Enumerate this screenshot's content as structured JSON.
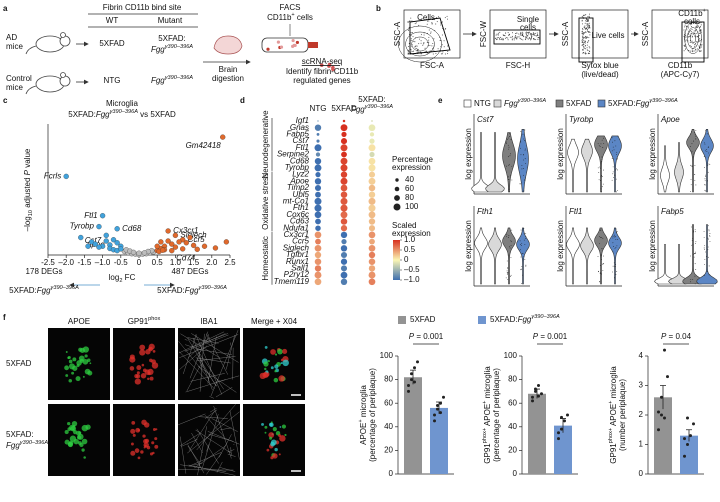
{
  "panel_a": {
    "letter": "a",
    "ad_mice": [
      "AD",
      "mice"
    ],
    "control_mice": [
      "Control",
      "mice"
    ],
    "header": "Fibrin CD11b bind site",
    "wt": "WT",
    "mutant": "Mutant",
    "rows": [
      {
        "wt": "5XFAD",
        "mutant": [
          [
            {
              "t": "5XFAD:"
            }
          ],
          [
            {
              "t": "Fgg",
              "i": true
            },
            {
              "t": "γ390–396A",
              "i": true,
              "sup": true
            }
          ]
        ]
      },
      {
        "wt": "NTG",
        "mutant": [
          [
            {
              "t": "Fgg",
              "i": true
            },
            {
              "t": "γ390–396A",
              "i": true,
              "sup": true
            }
          ]
        ]
      }
    ],
    "digestion": [
      "Brain",
      "digestion"
    ],
    "facs": [
      [
        {
          "t": "FACS"
        }
      ],
      [
        {
          "t": "CD11b"
        },
        {
          "t": "+",
          "sup": true
        },
        {
          "t": " cells"
        }
      ]
    ],
    "scrna": "scRNA-seq",
    "identify": [
      "Identify fibrin-CD11b",
      "regulated genes"
    ]
  },
  "panel_b": {
    "letter": "b",
    "plots": [
      {
        "y": "SSC-A",
        "x": [
          [
            {
              "t": "FSC-A"
            }
          ]
        ],
        "gate": [
          [
            {
              "t": "Cells"
            }
          ]
        ]
      },
      {
        "y": "FSC-W",
        "x": [
          [
            {
              "t": "FSC-H"
            }
          ]
        ],
        "gate": [
          [
            {
              "t": "Single"
            }
          ],
          [
            {
              "t": "cells"
            }
          ]
        ]
      },
      {
        "y": "SSC-A",
        "x": [
          [
            {
              "t": "Sytox blue"
            }
          ],
          [
            {
              "t": "(live/dead)"
            }
          ]
        ],
        "gate": [
          [
            {
              "t": "Live cells"
            }
          ]
        ]
      },
      {
        "y": "SSC-A",
        "x": [
          [
            {
              "t": "CD11b"
            }
          ],
          [
            {
              "t": "(APC-Cy7)"
            }
          ]
        ],
        "gate": [
          [
            {
              "t": "CD11b"
            },
            {
              "t": "+",
              "sup": true
            }
          ],
          [
            {
              "t": "cells"
            }
          ]
        ]
      }
    ]
  },
  "panel_c": {
    "letter": "c",
    "type": "scatter",
    "title": "Microglia",
    "subtitle": [
      {
        "t": "5XFAD:"
      },
      {
        "t": "Fgg",
        "i": true
      },
      {
        "t": "γ390–396A",
        "i": true,
        "sup": true
      },
      {
        "t": " vs 5XFAD"
      }
    ],
    "y_label": [
      {
        "t": "–log"
      },
      {
        "t": "10",
        "sub": true
      },
      {
        "t": " adjusted "
      },
      {
        "t": "P",
        "i": true
      },
      {
        "t": " value"
      }
    ],
    "x_label": [
      {
        "t": "log"
      },
      {
        "t": "2",
        "sub": true
      },
      {
        "t": " FC"
      }
    ],
    "xlim": [
      -2.5,
      2.5
    ],
    "ylim": [
      0,
      30
    ],
    "xticks": [
      -2.5,
      {
        "value": -2,
        "label": "–2.0"
      },
      -1.5,
      {
        "value": -1,
        "label": "–1.0"
      },
      -0.5,
      0,
      0.5,
      {
        "value": 1,
        "label": "1.0"
      },
      1.5,
      {
        "value": 2,
        "label": "2.0"
      },
      2.5
    ],
    "series": [
      {
        "color": "#bdbdbd",
        "x": [
          -0.4,
          -0.3,
          -0.2,
          -0.1,
          0,
          0.1,
          0.2,
          0.3,
          0.4,
          -0.35,
          0.35,
          -0.25,
          0.25,
          0,
          -0.15,
          0.15
        ],
        "y": [
          0.8,
          0.5,
          0.3,
          0.2,
          0.1,
          0.2,
          0.3,
          0.5,
          0.7,
          1.2,
          1.0,
          0.9,
          0.8,
          0.4,
          0.6,
          0.5
        ],
        "labels": [
          null,
          null,
          null,
          null,
          null,
          null,
          null,
          null,
          null,
          null,
          null,
          null,
          null,
          null,
          null,
          null
        ]
      },
      {
        "color": "#41a2dc",
        "x": [
          -2.0,
          -1.0,
          -1.1,
          -0.6,
          -0.9,
          -0.8,
          -1.6,
          -1.3,
          -1.2,
          -0.9,
          -0.7,
          -0.6,
          -0.5,
          -1.0,
          -0.8,
          -0.7,
          -0.6,
          -1.4,
          -0.5,
          -1.1
        ],
        "y": [
          18,
          9,
          6.5,
          6,
          3.2,
          2.3,
          4,
          3,
          2.5,
          4.5,
          3.5,
          2.8,
          2,
          2,
          1.5,
          1.2,
          1,
          2,
          1.4,
          1.8
        ],
        "labels": [
          "Fcrls",
          "Ftl1",
          "Tyrobp",
          "Cd68",
          "Cst7",
          "Apoe",
          null,
          null,
          null,
          null,
          null,
          null,
          null,
          null,
          null,
          null,
          null,
          null,
          null,
          null
        ]
      },
      {
        "color": "#e0692c",
        "x": [
          2.3,
          0.8,
          1.0,
          1.2,
          1.6,
          0.5,
          0.6,
          0.7,
          0.9,
          1.1,
          1.3,
          1.5,
          1.8,
          2.1,
          0.5,
          0.6,
          0.8,
          1.0,
          1.4,
          0.7,
          0.9,
          1.2,
          0.55,
          0.65,
          2.4
        ],
        "y": [
          27,
          5.5,
          4.5,
          3.5,
          1.3,
          1,
          1.5,
          2,
          2.5,
          3,
          2.8,
          2.2,
          2,
          1.6,
          2,
          3,
          3.2,
          1.8,
          4,
          1.2,
          1.0,
          1.4,
          0.8,
          1.1,
          3
        ],
        "labels": [
          "Gm42418",
          "Cx3cr1",
          "Siglech",
          "Ccr5",
          "Cd74",
          null,
          null,
          null,
          null,
          null,
          null,
          null,
          null,
          null,
          null,
          null,
          null,
          null,
          null,
          null,
          null,
          null,
          null,
          null,
          null
        ]
      }
    ],
    "degs_left": "178 DEGs",
    "degs_right": "487 DEGs",
    "left_group": [
      {
        "t": "5XFAD:"
      },
      {
        "t": "Fgg",
        "i": true
      },
      {
        "t": "γ390–396A",
        "i": true,
        "sup": true
      }
    ],
    "right_group": [
      {
        "t": "5XFAD:"
      },
      {
        "t": "Fgg",
        "i": true
      },
      {
        "t": "γ390–396A",
        "i": true,
        "sup": true
      }
    ]
  },
  "panel_d": {
    "letter": "d",
    "type": "dot",
    "columns": [
      [
        [
          {
            "t": "NTG"
          }
        ]
      ],
      [
        [
          {
            "t": "5XFAD"
          }
        ]
      ],
      [
        [
          {
            "t": "5XFAD:"
          }
        ],
        [
          {
            "t": "Fgg",
            "i": true
          },
          {
            "t": "γ390–396A",
            "i": true,
            "sup": true
          }
        ]
      ]
    ],
    "groups": [
      {
        "name": "Neurodegenerative",
        "genes": [
          "Igf1",
          "Gnas",
          "Fabp5",
          "Cst7",
          "Ftl1",
          "Serpine2",
          "Cd68",
          "Tyrobp"
        ],
        "scaled": [
          [
            -0.8,
            1.0,
            -0.2
          ],
          [
            -0.9,
            1.0,
            -0.1
          ],
          [
            -0.9,
            1.0,
            -0.1
          ],
          [
            -0.9,
            1.0,
            -0.1
          ],
          [
            -1.0,
            0.9,
            0.1
          ],
          [
            -0.8,
            1.0,
            -0.2
          ],
          [
            -1.0,
            0.9,
            0.1
          ],
          [
            -1.0,
            0.9,
            0.1
          ]
        ],
        "pct": [
          [
            5,
            25,
            12
          ],
          [
            90,
            98,
            95
          ],
          [
            30,
            70,
            55
          ],
          [
            35,
            85,
            70
          ],
          [
            100,
            100,
            100
          ],
          [
            55,
            80,
            70
          ],
          [
            90,
            98,
            95
          ],
          [
            99,
            100,
            100
          ]
        ]
      },
      {
        "name": "Oxidative stress",
        "genes": [
          "Lyz2",
          "Apoe",
          "Timp2",
          "Ubl5",
          "mt-Co1",
          "Fth1",
          "Cox6c",
          "Cd63",
          "Ndufa1"
        ],
        "scaled": [
          [
            -1.0,
            0.9,
            0.2
          ],
          [
            -1.0,
            0.9,
            0.2
          ],
          [
            -1.0,
            0.8,
            0.3
          ],
          [
            -1.0,
            0.8,
            0.2
          ],
          [
            -1.0,
            0.8,
            0.3
          ],
          [
            -1.0,
            0.8,
            0.2
          ],
          [
            -1.0,
            0.7,
            0.3
          ],
          [
            -1.0,
            0.8,
            0.3
          ],
          [
            -1.0,
            0.7,
            0.3
          ]
        ],
        "pct": [
          [
            70,
            90,
            85
          ],
          [
            90,
            100,
            98
          ],
          [
            85,
            95,
            92
          ],
          [
            80,
            92,
            90
          ],
          [
            100,
            100,
            100
          ],
          [
            100,
            100,
            100
          ],
          [
            95,
            98,
            97
          ],
          [
            80,
            92,
            90
          ],
          [
            75,
            88,
            85
          ]
        ]
      },
      {
        "name": "Homeostatic",
        "genes": [
          "Cx3cr1",
          "Ccr5",
          "Siglech",
          "Tgfbr1",
          "Runx1",
          "Sall1",
          "P2ry12",
          "Tmem119"
        ],
        "scaled": [
          [
            0.5,
            -1.0,
            0.5
          ],
          [
            0.6,
            -0.9,
            0.4
          ],
          [
            0.5,
            -1.0,
            0.5
          ],
          [
            0.4,
            -0.9,
            0.6
          ],
          [
            0.5,
            -1.0,
            0.5
          ],
          [
            0.6,
            -0.9,
            0.4
          ],
          [
            0.5,
            -1.0,
            0.5
          ],
          [
            0.4,
            -0.9,
            0.6
          ]
        ],
        "pct": [
          [
            95,
            90,
            95
          ],
          [
            80,
            70,
            80
          ],
          [
            95,
            90,
            95
          ],
          [
            90,
            85,
            90
          ],
          [
            92,
            88,
            92
          ],
          [
            90,
            85,
            90
          ],
          [
            98,
            95,
            98
          ],
          [
            95,
            90,
            95
          ]
        ]
      }
    ],
    "size_legend": {
      "title": [
        "Percentage",
        "expression"
      ],
      "values": [
        40,
        60,
        80,
        100
      ]
    },
    "color_legend": {
      "title": [
        "Scaled",
        "expression"
      ],
      "clim": [
        -1,
        1
      ],
      "colors": [
        "#3e6fb0",
        "#fbf6b4",
        "#d7301f"
      ],
      "ticks": [
        {
          "value": 1,
          "label": "1.0"
        },
        0.5,
        0,
        {
          "value": -0.5,
          "label": "–0.5"
        },
        {
          "value": -1,
          "label": "–1.0"
        }
      ]
    }
  },
  "panel_e": {
    "letter": "e",
    "legend": [
      [
        {
          "t": "NTG"
        }
      ],
      [
        {
          "t": "Fgg",
          "i": true
        },
        {
          "t": "γ390–396A",
          "i": true,
          "sup": true
        }
      ],
      [
        {
          "t": "5XFAD"
        }
      ],
      [
        {
          "t": "5XFAD:"
        },
        {
          "t": "Fgg",
          "i": true
        },
        {
          "t": "γ390–396A",
          "i": true,
          "sup": true
        }
      ]
    ],
    "colors": [
      "#ffffff",
      "#d9d9d9",
      "#7f7f7f",
      "#5b86c5"
    ],
    "panels": [
      {
        "gene": "Cst7",
        "y_label": "log expression"
      },
      {
        "gene": "Tyrobp",
        "y_label": "log expression"
      },
      {
        "gene": "Apoe",
        "y_label": "log expression"
      },
      {
        "gene": "Fth1",
        "y_label": "log expression"
      },
      {
        "gene": "Ftl1",
        "y_label": "log expression"
      },
      {
        "gene": "Fabp5",
        "y_label": "log expression"
      }
    ]
  },
  "panel_f": {
    "letter": "f",
    "image_columns": [
      [
        {
          "t": "APOE"
        }
      ],
      [
        {
          "t": "GP91"
        },
        {
          "t": "phox",
          "sup": true
        }
      ],
      [
        {
          "t": "IBA1"
        }
      ],
      [
        {
          "t": "Merge + X04"
        }
      ]
    ],
    "image_rows": [
      [
        [
          {
            "t": "5XFAD"
          }
        ]
      ],
      [
        [
          {
            "t": "5XFAD:"
          }
        ],
        [
          {
            "t": "Fgg",
            "i": true
          },
          {
            "t": "γ390–396A",
            "i": true,
            "sup": true
          }
        ]
      ]
    ],
    "type": "bar",
    "series": [
      {
        "name": [
          {
            "t": "5XFAD"
          }
        ],
        "color": "#939393"
      },
      {
        "name": [
          {
            "t": "5XFAD:"
          },
          {
            "t": "Fgg",
            "i": true
          },
          {
            "t": "γ390–396A",
            "i": true,
            "sup": true
          }
        ],
        "color": "#6f95cf"
      }
    ],
    "charts": [
      {
        "y_label": [
          [
            {
              "t": "APOE"
            },
            {
              "t": "+",
              "sup": true
            },
            {
              "t": " microglia"
            }
          ],
          [
            {
              "t": "(percentage of periplaque)"
            }
          ]
        ],
        "ylim": [
          0,
          100
        ],
        "yticks": [
          0,
          20,
          40,
          60,
          80,
          100
        ],
        "values": [
          82,
          56
        ],
        "errors": [
          6,
          5
        ],
        "points": [
          [
            70,
            85,
            90,
            95,
            75,
            80,
            78
          ],
          [
            45,
            55,
            60,
            65,
            50,
            58,
            52
          ]
        ],
        "p_label": [
          {
            "t": "P",
            "i": true
          },
          {
            "t": " = 0.001"
          }
        ]
      },
      {
        "y_label": [
          [
            {
              "t": "GP91"
            },
            {
              "t": "phox+",
              "sup": true
            },
            {
              "t": " APOE"
            },
            {
              "t": "+",
              "sup": true
            },
            {
              "t": " microglia"
            }
          ],
          [
            {
              "t": "(percentage of periplaque)"
            }
          ]
        ],
        "ylim": [
          0,
          100
        ],
        "yticks": [
          0,
          20,
          40,
          60,
          80,
          100
        ],
        "values": [
          68,
          41
        ],
        "errors": [
          4,
          6
        ],
        "points": [
          [
            62,
            70,
            75,
            68,
            65,
            72,
            66
          ],
          [
            30,
            38,
            45,
            50,
            35,
            48
          ]
        ],
        "p_label": [
          {
            "t": "P",
            "i": true
          },
          {
            "t": " = 0.001"
          }
        ]
      },
      {
        "y_label": [
          [
            {
              "t": "GP91"
            },
            {
              "t": "phox+",
              "sup": true
            },
            {
              "t": " APOE"
            },
            {
              "t": "+",
              "sup": true
            },
            {
              "t": " microglia"
            }
          ],
          [
            {
              "t": "(number periplaque)"
            }
          ]
        ],
        "ylim": [
          0,
          4
        ],
        "yticks": [
          0,
          1,
          2,
          3,
          4
        ],
        "values": [
          2.6,
          1.3
        ],
        "errors": [
          0.4,
          0.2
        ],
        "points": [
          [
            1.5,
            2.0,
            4.2,
            3.3,
            2.1,
            2.6,
            1.9
          ],
          [
            0.6,
            1.0,
            1.3,
            1.7,
            1.2,
            1.9
          ]
        ],
        "p_label": [
          {
            "t": "P",
            "i": true
          },
          {
            "t": " = 0.04"
          }
        ]
      }
    ]
  }
}
